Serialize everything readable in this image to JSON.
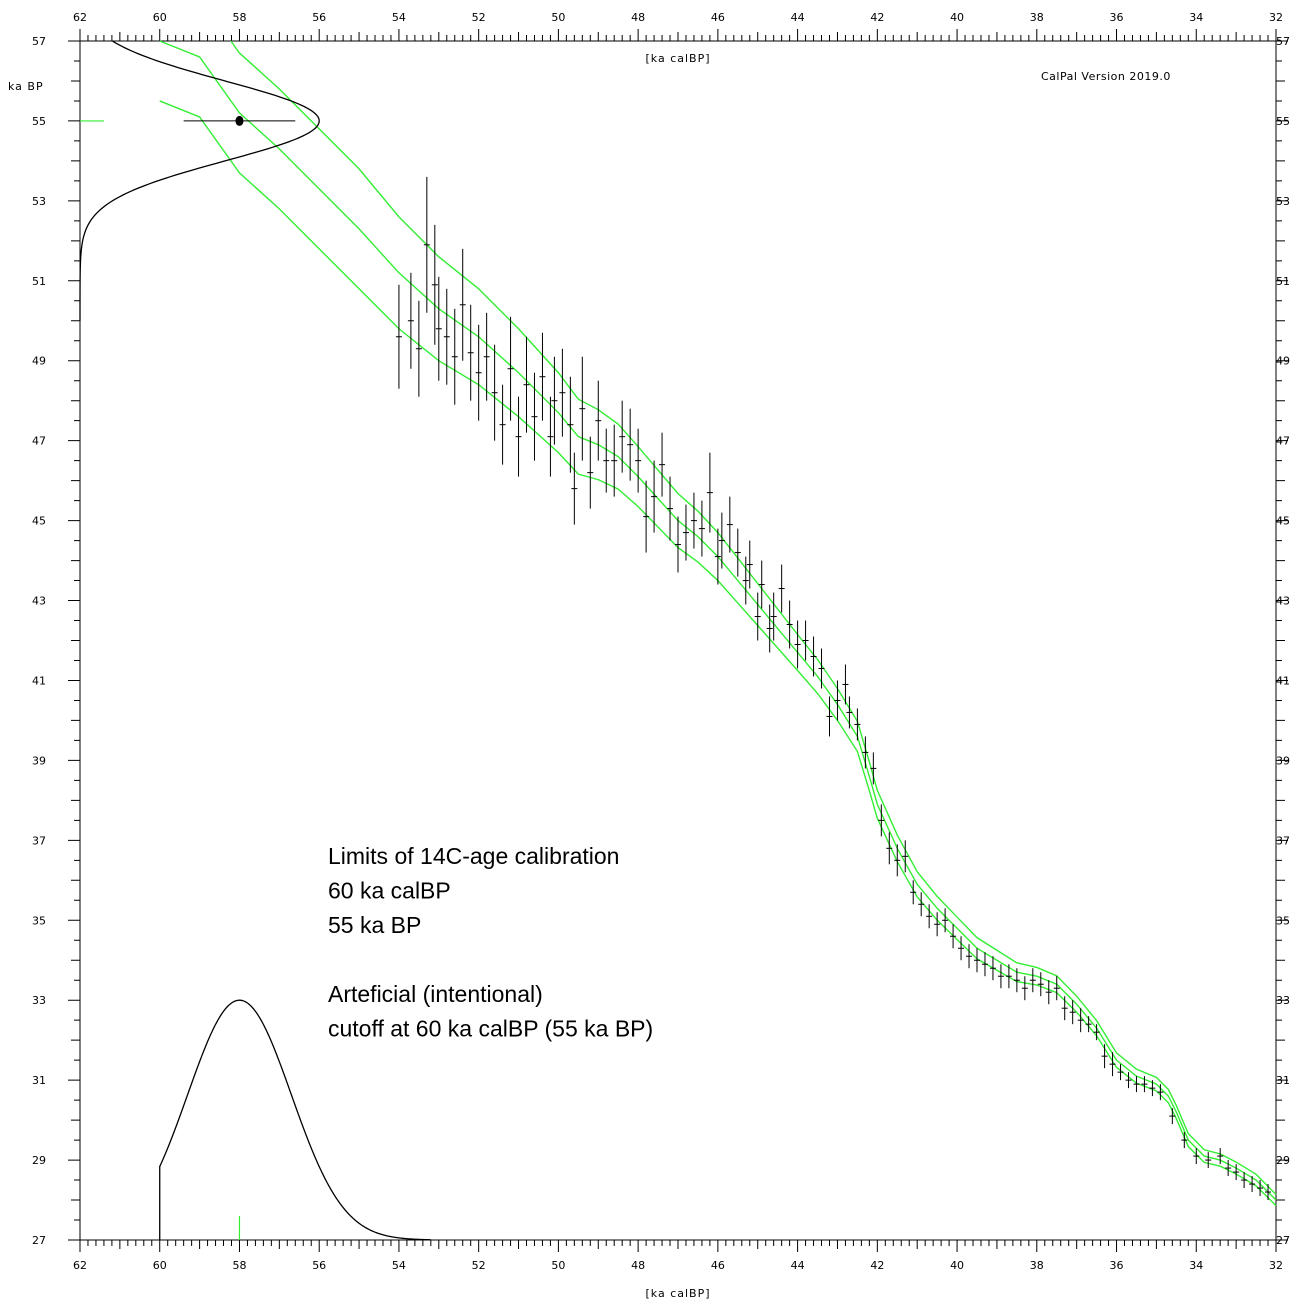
{
  "chart_data": {
    "type": "line",
    "software_label": "CalPal  Version  2019.0",
    "x_axis": {
      "label": "[ka calBP]",
      "range": [
        62,
        32
      ],
      "reversed": true,
      "major_ticks": [
        62,
        60,
        58,
        56,
        54,
        52,
        50,
        48,
        46,
        44,
        42,
        40,
        38,
        36,
        34,
        32
      ],
      "minor_step": 0.2
    },
    "y_axis": {
      "label": "ka BP",
      "range": [
        27,
        57
      ],
      "major_ticks": [
        27,
        29,
        31,
        33,
        35,
        37,
        39,
        41,
        43,
        45,
        47,
        49,
        51,
        53,
        55,
        57
      ],
      "minor_step": 0.5
    },
    "calibration_curve": {
      "color": "#33ee33",
      "points": [
        [
          60,
          57.0
        ],
        [
          59,
          56.6
        ],
        [
          58,
          55.2
        ],
        [
          57,
          54.3
        ],
        [
          56,
          53.3
        ],
        [
          55,
          52.3
        ],
        [
          54,
          51.2
        ],
        [
          53,
          50.3
        ],
        [
          52,
          49.6
        ],
        [
          51,
          48.7
        ],
        [
          50,
          47.7
        ],
        [
          49.5,
          47.1
        ],
        [
          49,
          46.9
        ],
        [
          48.5,
          46.6
        ],
        [
          48,
          46.1
        ],
        [
          47,
          45.0
        ],
        [
          46.5,
          44.6
        ],
        [
          46,
          44.1
        ],
        [
          45.5,
          43.5
        ],
        [
          45,
          42.9
        ],
        [
          44.5,
          42.3
        ],
        [
          44,
          41.7
        ],
        [
          43.5,
          41.1
        ],
        [
          43,
          40.4
        ],
        [
          42.5,
          39.6
        ],
        [
          42.2,
          38.6
        ],
        [
          42,
          37.9
        ],
        [
          41.5,
          36.8
        ],
        [
          41,
          35.9
        ],
        [
          40.5,
          35.3
        ],
        [
          40,
          34.8
        ],
        [
          39.5,
          34.3
        ],
        [
          39,
          34.0
        ],
        [
          38.5,
          33.7
        ],
        [
          38,
          33.6
        ],
        [
          37.5,
          33.4
        ],
        [
          37,
          32.9
        ],
        [
          36.5,
          32.3
        ],
        [
          36,
          31.5
        ],
        [
          35.5,
          31.1
        ],
        [
          35,
          30.9
        ],
        [
          34.7,
          30.6
        ],
        [
          34.5,
          30.2
        ],
        [
          34.2,
          29.5
        ],
        [
          33.8,
          29.1
        ],
        [
          33.4,
          29.0
        ],
        [
          33,
          28.8
        ],
        [
          32.5,
          28.5
        ],
        [
          32,
          28.0
        ]
      ],
      "band_halfwidth": [
        [
          60,
          1.5
        ],
        [
          55,
          1.5
        ],
        [
          50,
          1.0
        ],
        [
          48,
          0.75
        ],
        [
          46,
          0.6
        ],
        [
          44,
          0.45
        ],
        [
          42,
          0.35
        ],
        [
          40,
          0.28
        ],
        [
          38,
          0.22
        ],
        [
          36,
          0.18
        ],
        [
          34,
          0.16
        ],
        [
          32,
          0.14
        ]
      ]
    },
    "data_points": [
      [
        54.0,
        49.6,
        1.3
      ],
      [
        53.7,
        50.0,
        1.2
      ],
      [
        53.5,
        49.3,
        1.2
      ],
      [
        53.3,
        51.9,
        1.7
      ],
      [
        53.1,
        50.9,
        1.5
      ],
      [
        53.0,
        49.8,
        1.3
      ],
      [
        52.8,
        49.6,
        1.2
      ],
      [
        52.6,
        49.1,
        1.2
      ],
      [
        52.4,
        50.4,
        1.4
      ],
      [
        52.2,
        49.2,
        1.2
      ],
      [
        52.0,
        48.7,
        1.2
      ],
      [
        51.8,
        49.1,
        1.1
      ],
      [
        51.6,
        48.2,
        1.2
      ],
      [
        51.4,
        47.4,
        1.0
      ],
      [
        51.2,
        48.8,
        1.3
      ],
      [
        51.0,
        47.1,
        1.0
      ],
      [
        50.8,
        48.4,
        1.2
      ],
      [
        50.6,
        47.6,
        1.1
      ],
      [
        50.4,
        48.6,
        1.1
      ],
      [
        50.2,
        47.1,
        1.0
      ],
      [
        50.1,
        48.0,
        1.1
      ],
      [
        49.9,
        48.2,
        1.1
      ],
      [
        49.7,
        47.4,
        1.2
      ],
      [
        49.6,
        45.8,
        0.9
      ],
      [
        49.4,
        47.8,
        1.3
      ],
      [
        49.2,
        46.2,
        0.9
      ],
      [
        49.0,
        47.5,
        1.0
      ],
      [
        48.8,
        46.5,
        0.8
      ],
      [
        48.6,
        46.5,
        0.9
      ],
      [
        48.4,
        47.1,
        0.9
      ],
      [
        48.2,
        46.9,
        0.9
      ],
      [
        48.0,
        46.5,
        0.8
      ],
      [
        47.8,
        45.1,
        0.9
      ],
      [
        47.6,
        45.6,
        0.9
      ],
      [
        47.4,
        46.4,
        0.8
      ],
      [
        47.2,
        45.3,
        0.8
      ],
      [
        47.0,
        44.4,
        0.7
      ],
      [
        46.8,
        44.7,
        0.7
      ],
      [
        46.6,
        45.0,
        0.7
      ],
      [
        46.4,
        44.8,
        0.7
      ],
      [
        46.2,
        45.7,
        1.0
      ],
      [
        46.0,
        44.1,
        0.7
      ],
      [
        45.9,
        44.5,
        0.7
      ],
      [
        45.7,
        44.9,
        0.7
      ],
      [
        45.5,
        44.2,
        0.6
      ],
      [
        45.3,
        43.5,
        0.6
      ],
      [
        45.2,
        43.9,
        0.6
      ],
      [
        45.0,
        42.6,
        0.6
      ],
      [
        44.9,
        43.4,
        0.6
      ],
      [
        44.7,
        42.3,
        0.6
      ],
      [
        44.6,
        42.6,
        0.6
      ],
      [
        44.4,
        43.3,
        0.6
      ],
      [
        44.2,
        42.4,
        0.6
      ],
      [
        44.0,
        41.9,
        0.6
      ],
      [
        43.8,
        42.0,
        0.5
      ],
      [
        43.6,
        41.6,
        0.5
      ],
      [
        43.4,
        41.3,
        0.5
      ],
      [
        43.2,
        40.1,
        0.5
      ],
      [
        43.0,
        40.5,
        0.5
      ],
      [
        42.8,
        40.9,
        0.5
      ],
      [
        42.7,
        40.2,
        0.4
      ],
      [
        42.5,
        39.9,
        0.4
      ],
      [
        42.3,
        39.2,
        0.4
      ],
      [
        42.1,
        38.8,
        0.4
      ],
      [
        41.9,
        37.5,
        0.4
      ],
      [
        41.7,
        36.8,
        0.4
      ],
      [
        41.5,
        36.5,
        0.4
      ],
      [
        41.3,
        36.6,
        0.4
      ],
      [
        41.1,
        35.7,
        0.3
      ],
      [
        40.9,
        35.4,
        0.3
      ],
      [
        40.7,
        35.1,
        0.3
      ],
      [
        40.5,
        34.9,
        0.3
      ],
      [
        40.3,
        35.0,
        0.3
      ],
      [
        40.1,
        34.6,
        0.3
      ],
      [
        39.9,
        34.3,
        0.3
      ],
      [
        39.7,
        34.1,
        0.3
      ],
      [
        39.5,
        34.0,
        0.3
      ],
      [
        39.3,
        33.9,
        0.3
      ],
      [
        39.1,
        33.8,
        0.3
      ],
      [
        38.9,
        33.6,
        0.3
      ],
      [
        38.7,
        33.6,
        0.3
      ],
      [
        38.5,
        33.5,
        0.3
      ],
      [
        38.3,
        33.3,
        0.3
      ],
      [
        38.1,
        33.5,
        0.3
      ],
      [
        37.9,
        33.4,
        0.3
      ],
      [
        37.7,
        33.2,
        0.3
      ],
      [
        37.5,
        33.3,
        0.3
      ],
      [
        37.3,
        32.8,
        0.3
      ],
      [
        37.1,
        32.7,
        0.3
      ],
      [
        36.9,
        32.5,
        0.3
      ],
      [
        36.7,
        32.4,
        0.2
      ],
      [
        36.5,
        32.2,
        0.2
      ],
      [
        36.3,
        31.6,
        0.3
      ],
      [
        36.1,
        31.4,
        0.3
      ],
      [
        35.9,
        31.2,
        0.2
      ],
      [
        35.7,
        31.0,
        0.2
      ],
      [
        35.5,
        30.9,
        0.2
      ],
      [
        35.3,
        30.9,
        0.2
      ],
      [
        35.1,
        30.8,
        0.2
      ],
      [
        34.9,
        30.7,
        0.2
      ],
      [
        34.6,
        30.1,
        0.2
      ],
      [
        34.3,
        29.5,
        0.2
      ],
      [
        34.0,
        29.1,
        0.2
      ],
      [
        33.7,
        29.0,
        0.2
      ],
      [
        33.4,
        29.1,
        0.2
      ],
      [
        33.2,
        28.8,
        0.2
      ],
      [
        33.0,
        28.7,
        0.2
      ],
      [
        32.8,
        28.5,
        0.2
      ],
      [
        32.6,
        28.4,
        0.2
      ],
      [
        32.4,
        28.3,
        0.2
      ],
      [
        32.2,
        28.2,
        0.2
      ]
    ],
    "sample": {
      "bp": 55.0,
      "calbp": 58.0,
      "x_error_range": [
        59.4,
        56.6
      ],
      "bp_sigma": 1.0,
      "bp_density_peak_x": 56.0
    },
    "cal_distribution": {
      "mean": 58.0,
      "sigma": 1.3,
      "cutoff": 60.0,
      "peak_y": 33.0,
      "base_y": 27.0
    },
    "annotation_lines": [
      "Limits of 14C-age calibration",
      "60 ka calBP",
      "55 ka BP",
      "",
      "Arteficial (intentional)",
      "cutoff at 60 ka calBP (55 ka BP)"
    ]
  }
}
